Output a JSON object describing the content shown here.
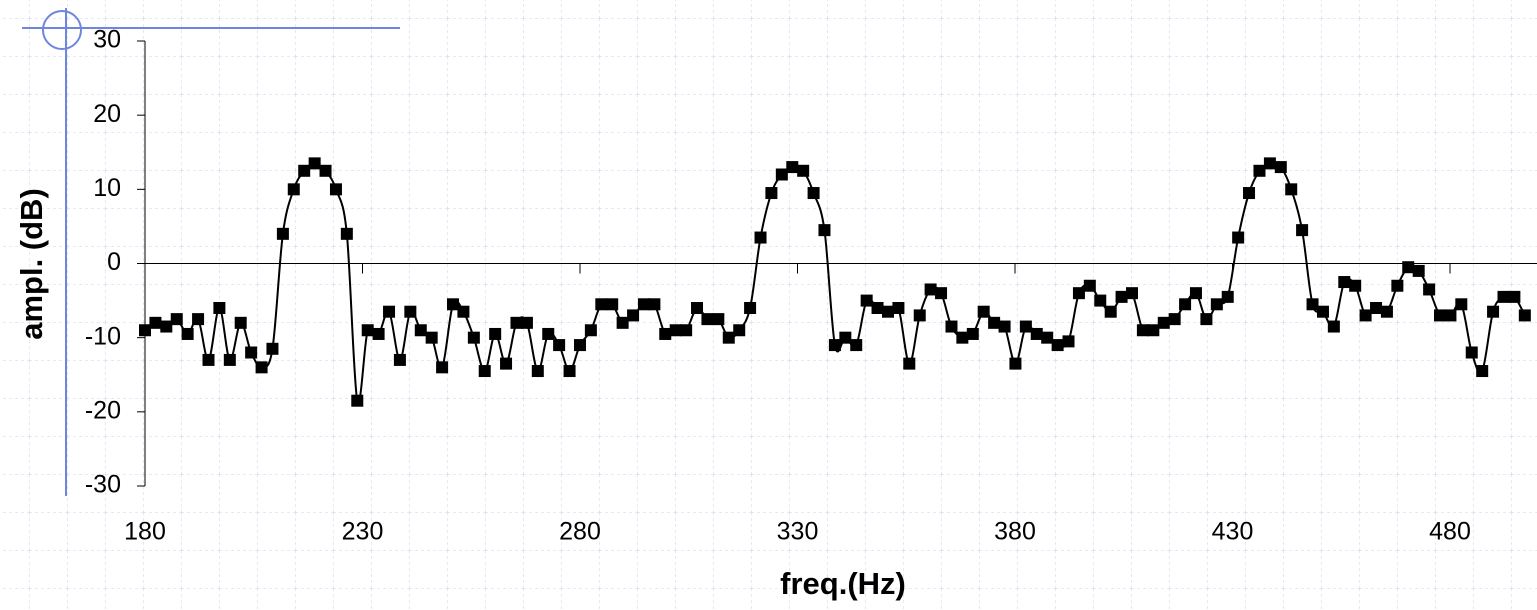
{
  "chart_data": {
    "type": "line",
    "x_label": "freq.(Hz)",
    "y_label": "ampl. (dB)",
    "x": [
      180.0,
      182.4,
      184.9,
      187.3,
      189.8,
      192.2,
      194.6,
      197.1,
      199.5,
      202.0,
      204.4,
      206.8,
      209.3,
      211.7,
      214.2,
      216.6,
      219.0,
      221.5,
      223.9,
      226.4,
      228.8,
      231.2,
      233.7,
      236.1,
      238.6,
      241.0,
      243.4,
      245.9,
      248.3,
      250.8,
      253.2,
      255.6,
      258.1,
      260.5,
      263.0,
      265.4,
      267.8,
      270.3,
      272.7,
      275.2,
      277.6,
      280.0,
      282.5,
      284.9,
      287.4,
      289.8,
      292.2,
      294.7,
      297.1,
      299.6,
      302.0,
      304.4,
      306.9,
      309.3,
      311.8,
      314.2,
      316.6,
      319.1,
      321.5,
      324.0,
      326.4,
      328.8,
      331.3,
      333.7,
      336.2,
      338.6,
      341.0,
      343.5,
      345.9,
      348.4,
      350.8,
      353.2,
      355.7,
      358.1,
      360.6,
      363.0,
      365.4,
      367.9,
      370.3,
      372.8,
      375.2,
      377.6,
      380.1,
      382.5,
      385.0,
      387.4,
      389.8,
      392.3,
      394.7,
      397.2,
      399.6,
      402.0,
      404.5,
      406.9,
      409.4,
      411.8,
      414.2,
      416.7,
      419.1,
      421.6,
      424.0,
      426.4,
      428.9,
      431.3,
      433.8,
      436.2,
      438.6,
      441.1,
      443.5,
      446.0,
      448.4,
      450.8,
      453.3,
      455.7,
      458.2,
      460.6,
      463.0,
      465.5,
      467.9,
      470.4,
      472.8,
      475.2,
      477.7,
      480.1,
      482.6,
      485.0,
      487.4,
      489.9,
      492.3,
      494.8,
      497.2
    ],
    "series": [
      {
        "color": "#000000",
        "values": [
          -9,
          -8,
          -8.5,
          -7.5,
          -9.5,
          -7.5,
          -13,
          -6,
          -13,
          -8,
          -12,
          -14,
          -11.5,
          4,
          10,
          12.5,
          13.5,
          12.5,
          10,
          4,
          -18.5,
          -9,
          -9.5,
          -6.5,
          -13,
          -6.5,
          -9,
          -10,
          -14,
          -5.5,
          -6.5,
          -10,
          -14.5,
          -9.5,
          -13.5,
          -8,
          -8,
          -14.5,
          -9.5,
          -11,
          -14.5,
          -11,
          -9,
          -5.5,
          -5.5,
          -8,
          -7,
          -5.5,
          -5.5,
          -9.5,
          -9,
          -9,
          -6,
          -7.5,
          -7.5,
          -10,
          -9,
          -6,
          3.5,
          9.5,
          12,
          13,
          12.5,
          9.5,
          4.5,
          -11,
          -10,
          -11,
          -5,
          -6,
          -6.5,
          -6,
          -13.5,
          -7,
          -3.5,
          -4,
          -8.5,
          -10,
          -9.5,
          -6.5,
          -8,
          -8.5,
          -13.5,
          -8.5,
          -9.5,
          -10,
          -11,
          -10.5,
          -4,
          -3,
          -5,
          -6.5,
          -4.5,
          -4,
          -9,
          -9,
          -8,
          -7.5,
          -5.5,
          -4,
          -7.5,
          -5.5,
          -4.5,
          3.5,
          9.5,
          12.5,
          13.5,
          13,
          10,
          4.5,
          -5.5,
          -6.5,
          -8.5,
          -2.5,
          -3,
          -7,
          -6,
          -6.5,
          -3,
          -0.5,
          -1,
          -3.5,
          -7,
          -7,
          -5.5,
          -12,
          -14.5,
          -6.5,
          -4.5,
          -4.5,
          -7
        ]
      }
    ],
    "xlim": [
      180,
      500
    ],
    "xticks": [
      180,
      230,
      280,
      330,
      380,
      430,
      480
    ],
    "ylim": [
      -30,
      30
    ],
    "yticks": [
      -30,
      -20,
      -10,
      0,
      10,
      20,
      30
    ],
    "grid": false
  }
}
